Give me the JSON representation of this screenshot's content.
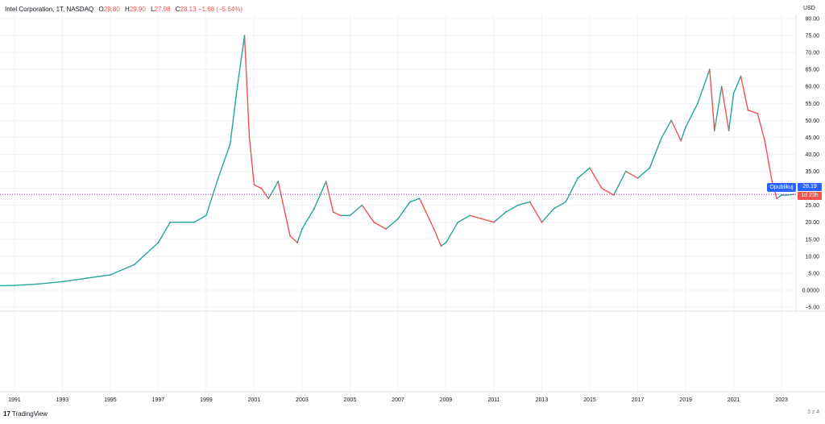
{
  "header": {
    "symbol": "Intel Corporation, 1T, NASDAQ",
    "open_key": "O",
    "open": "29.80",
    "high_key": "H",
    "high": "29.90",
    "low_key": "L",
    "low": "27.98",
    "close_key": "C",
    "close": "28.13",
    "change": "−1.68 (−5.64%)"
  },
  "currency": "USD",
  "last_price_label": "28.19",
  "countdown_label": "1d 23h",
  "publish_button": "Opublikuj",
  "branding": "TradingView",
  "zoom_label": "3 z 4",
  "colors": {
    "up": "#26a69a",
    "down": "#ef5350",
    "last_price_line": "#9c27b0",
    "publish": "#2962ff",
    "grid": "#f0f3fa"
  },
  "chart_data": {
    "type": "line",
    "y_ticks": [
      "80.00",
      "75.00",
      "70.00",
      "65.00",
      "60.00",
      "55.00",
      "50.00",
      "45.00",
      "40.00",
      "35.00",
      "30.00",
      "25.00",
      "20.00",
      "15.00",
      "10.00",
      "5.00",
      "0.0000",
      "−5.00"
    ],
    "x_ticks": [
      "1991",
      "1993",
      "1995",
      "1997",
      "1999",
      "2001",
      "2003",
      "2005",
      "2007",
      "2009",
      "2011",
      "2013",
      "2015",
      "2017",
      "2019",
      "2021",
      "2023"
    ],
    "ylim": [
      -5,
      80
    ],
    "xlim": [
      1990.4,
      2023.5
    ],
    "last_price": 28.19,
    "series": [
      {
        "x": [
          1990.4,
          1991.0,
          1992.0,
          1993.0,
          1994.0,
          1995.0,
          1996.0,
          1997.0,
          1997.5,
          1998.0,
          1998.5,
          1999.0,
          1999.5,
          2000.0,
          2000.3,
          2000.6,
          2000.8,
          2001.0,
          2001.3,
          2001.6,
          2002.0,
          2002.5,
          2002.8,
          2003.0,
          2003.5,
          2004.0,
          2004.3,
          2004.6,
          2005.0,
          2005.5,
          2006.0,
          2006.5,
          2007.0,
          2007.5,
          2007.9,
          2008.5,
          2008.8,
          2009.0,
          2009.5,
          2010.0,
          2010.5,
          2011.0,
          2011.5,
          2012.0,
          2012.5,
          2013.0,
          2013.5,
          2014.0,
          2014.5,
          2015.0,
          2015.5,
          2016.0,
          2016.5,
          2017.0,
          2017.5,
          2018.0,
          2018.4,
          2018.8,
          2019.0,
          2019.5,
          2020.0,
          2020.2,
          2020.5,
          2020.8,
          2021.0,
          2021.3,
          2021.6,
          2022.0,
          2022.3,
          2022.6,
          2022.8,
          2023.0,
          2023.2,
          2023.5
        ],
        "y": [
          1.3,
          1.4,
          1.8,
          2.5,
          3.5,
          4.5,
          7.5,
          14,
          20,
          20,
          20,
          22,
          33,
          43,
          60,
          75,
          45,
          31,
          30,
          27,
          32,
          16,
          14,
          18,
          24,
          32,
          23,
          22,
          22,
          25,
          20,
          18,
          21,
          26,
          27,
          18,
          13,
          14,
          20,
          22,
          21,
          20,
          23,
          25,
          26,
          20,
          24,
          26,
          33,
          36,
          30,
          28,
          35,
          33,
          36,
          45,
          50,
          44,
          48,
          55,
          65,
          47,
          60,
          47,
          58,
          63,
          53,
          52,
          44,
          32,
          27,
          28,
          28,
          28.19
        ]
      }
    ]
  }
}
